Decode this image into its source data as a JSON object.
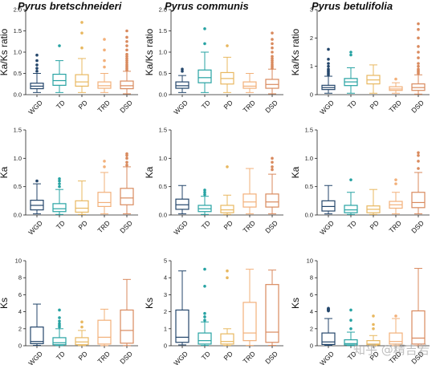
{
  "species_titles": [
    "Pyrus bretschneideri",
    "Pyrus communis",
    "Pyrus betulifolia"
  ],
  "watermark": "知乎 @精吉若",
  "categories": [
    "WGD",
    "TD",
    "PD",
    "TRD",
    "DSD"
  ],
  "colors": {
    "WGD": "#24466b",
    "TD": "#27a3a3",
    "PD": "#e8b860",
    "TRD": "#f2b07a",
    "DSD": "#d98a5e"
  },
  "chart_data": [
    {
      "type": "box",
      "species": "Pyrus bretschneideri",
      "ylabel": "Ka/Ks ratio",
      "ylim": [
        0,
        2.0
      ],
      "yticks": [
        0.0,
        0.5,
        1.0,
        1.5,
        2.0
      ],
      "tick_labels": [
        "0.0",
        "0.5",
        "1.0",
        "1.5",
        "2.0"
      ],
      "boxes": [
        {
          "category": "WGD",
          "min": 0.05,
          "q1": 0.14,
          "median": 0.2,
          "q3": 0.27,
          "max": 0.5,
          "outliers": [
            0.55,
            0.62,
            0.7,
            0.8,
            0.93
          ]
        },
        {
          "category": "TD",
          "min": 0.05,
          "q1": 0.22,
          "median": 0.33,
          "q3": 0.48,
          "max": 0.8,
          "outliers": [
            1.15
          ]
        },
        {
          "category": "PD",
          "min": 0.05,
          "q1": 0.2,
          "median": 0.3,
          "q3": 0.47,
          "max": 0.85,
          "outliers": [
            1.1,
            1.45,
            1.7
          ]
        },
        {
          "category": "TRD",
          "min": 0.05,
          "q1": 0.15,
          "median": 0.21,
          "q3": 0.3,
          "max": 0.5,
          "outliers": [
            0.65,
            0.8,
            1.05,
            1.3
          ]
        },
        {
          "category": "DSD",
          "min": 0.02,
          "q1": 0.14,
          "median": 0.21,
          "q3": 0.32,
          "max": 0.55,
          "outliers": [
            0.58,
            0.62,
            0.66,
            0.7,
            0.75,
            0.8,
            0.85,
            0.9,
            0.95,
            1.05,
            1.15,
            1.25,
            1.35,
            1.5
          ]
        }
      ]
    },
    {
      "type": "box",
      "species": "Pyrus communis",
      "ylabel": "Ka/Ks ratio",
      "ylim": [
        0,
        2.0
      ],
      "yticks": [
        0.0,
        0.5,
        1.0,
        1.5,
        2.0
      ],
      "tick_labels": [
        "0.0",
        "0.5",
        "1.0",
        "1.5",
        "2.0"
      ],
      "boxes": [
        {
          "category": "WGD",
          "min": 0.05,
          "q1": 0.15,
          "median": 0.21,
          "q3": 0.3,
          "max": 0.45,
          "outliers": [
            0.55,
            0.6
          ]
        },
        {
          "category": "TD",
          "min": 0.05,
          "q1": 0.28,
          "median": 0.4,
          "q3": 0.58,
          "max": 1.0,
          "outliers": [
            1.2,
            1.55
          ]
        },
        {
          "category": "PD",
          "min": 0.05,
          "q1": 0.25,
          "median": 0.38,
          "q3": 0.52,
          "max": 0.88,
          "outliers": [
            1.15
          ]
        },
        {
          "category": "TRD",
          "min": 0.05,
          "q1": 0.15,
          "median": 0.2,
          "q3": 0.3,
          "max": 0.5,
          "outliers": []
        },
        {
          "category": "DSD",
          "min": 0.02,
          "q1": 0.15,
          "median": 0.24,
          "q3": 0.36,
          "max": 0.6,
          "outliers": [
            0.62,
            0.66,
            0.7,
            0.75,
            0.8,
            0.85,
            0.9,
            1.0,
            1.1,
            1.2,
            1.3,
            1.45
          ]
        }
      ]
    },
    {
      "type": "box",
      "species": "Pyrus betulifolia",
      "ylabel": "Ka/Ks ratio",
      "ylim": [
        0,
        3
      ],
      "yticks": [
        0,
        1,
        2,
        3
      ],
      "tick_labels": [
        "0",
        "1",
        "2",
        "3"
      ],
      "boxes": [
        {
          "category": "WGD",
          "min": 0.05,
          "q1": 0.18,
          "median": 0.25,
          "q3": 0.33,
          "max": 0.65,
          "outliers": [
            0.7,
            0.75,
            0.8,
            0.85,
            0.9,
            1.0,
            1.1,
            1.25,
            1.6
          ]
        },
        {
          "category": "TD",
          "min": 0.05,
          "q1": 0.32,
          "median": 0.45,
          "q3": 0.57,
          "max": 0.95,
          "outliers": [
            1.4,
            1.5
          ]
        },
        {
          "category": "PD",
          "min": 0.05,
          "q1": 0.38,
          "median": 0.52,
          "q3": 0.68,
          "max": 1.05,
          "outliers": []
        },
        {
          "category": "TRD",
          "min": 0.05,
          "q1": 0.15,
          "median": 0.2,
          "q3": 0.28,
          "max": 0.42,
          "outliers": [
            0.55
          ]
        },
        {
          "category": "DSD",
          "min": 0.02,
          "q1": 0.15,
          "median": 0.25,
          "q3": 0.38,
          "max": 0.7,
          "outliers": [
            0.75,
            0.8,
            0.85,
            0.9,
            1.0,
            1.1,
            1.3,
            1.5,
            1.7,
            2.0,
            2.3,
            2.5
          ]
        }
      ]
    },
    {
      "type": "box",
      "species": "Pyrus bretschneideri",
      "ylabel": "Ka",
      "ylim": [
        0,
        1.5
      ],
      "yticks": [
        0.0,
        0.5,
        1.0,
        1.5
      ],
      "tick_labels": [
        "0.0",
        "0.5",
        "1.0",
        "1.5"
      ],
      "boxes": [
        {
          "category": "WGD",
          "min": 0.02,
          "q1": 0.09,
          "median": 0.17,
          "q3": 0.26,
          "max": 0.55,
          "outliers": [
            0.6
          ]
        },
        {
          "category": "TD",
          "min": 0.01,
          "q1": 0.06,
          "median": 0.11,
          "q3": 0.2,
          "max": 0.45,
          "outliers": [
            0.5,
            0.55,
            0.6,
            0.64
          ]
        },
        {
          "category": "PD",
          "min": 0.01,
          "q1": 0.05,
          "median": 0.12,
          "q3": 0.25,
          "max": 0.6,
          "outliers": []
        },
        {
          "category": "TRD",
          "min": 0.02,
          "q1": 0.15,
          "median": 0.22,
          "q3": 0.4,
          "max": 0.75,
          "outliers": [
            0.85,
            0.95
          ]
        },
        {
          "category": "DSD",
          "min": 0.02,
          "q1": 0.18,
          "median": 0.3,
          "q3": 0.47,
          "max": 0.85,
          "outliers": [
            0.88,
            0.93,
            1.0,
            1.05,
            1.08
          ]
        }
      ]
    },
    {
      "type": "box",
      "species": "Pyrus communis",
      "ylabel": "Ka",
      "ylim": [
        0,
        1.5
      ],
      "yticks": [
        0.0,
        0.5,
        1.0,
        1.5
      ],
      "tick_labels": [
        "0.0",
        "0.5",
        "1.0",
        "1.5"
      ],
      "boxes": [
        {
          "category": "WGD",
          "min": 0.02,
          "q1": 0.1,
          "median": 0.18,
          "q3": 0.28,
          "max": 0.52,
          "outliers": []
        },
        {
          "category": "TD",
          "min": 0.01,
          "q1": 0.06,
          "median": 0.11,
          "q3": 0.17,
          "max": 0.33,
          "outliers": [
            0.36,
            0.4,
            0.44
          ]
        },
        {
          "category": "PD",
          "min": 0.01,
          "q1": 0.04,
          "median": 0.09,
          "q3": 0.17,
          "max": 0.35,
          "outliers": [
            0.85
          ]
        },
        {
          "category": "TRD",
          "min": 0.02,
          "q1": 0.14,
          "median": 0.23,
          "q3": 0.37,
          "max": 0.82,
          "outliers": []
        },
        {
          "category": "DSD",
          "min": 0.02,
          "q1": 0.14,
          "median": 0.23,
          "q3": 0.37,
          "max": 0.72,
          "outliers": [
            0.8,
            0.85,
            0.93,
            1.0
          ]
        }
      ]
    },
    {
      "type": "box",
      "species": "Pyrus betulifolia",
      "ylabel": "Ka",
      "ylim": [
        0,
        1.5
      ],
      "yticks": [
        0.0,
        0.5,
        1.0,
        1.5
      ],
      "tick_labels": [
        "0.0",
        "0.5",
        "1.0",
        "1.5"
      ],
      "boxes": [
        {
          "category": "WGD",
          "min": 0.02,
          "q1": 0.07,
          "median": 0.15,
          "q3": 0.25,
          "max": 0.52,
          "outliers": []
        },
        {
          "category": "TD",
          "min": 0.01,
          "q1": 0.04,
          "median": 0.09,
          "q3": 0.17,
          "max": 0.4,
          "outliers": [
            0.62
          ]
        },
        {
          "category": "PD",
          "min": 0.01,
          "q1": 0.04,
          "median": 0.1,
          "q3": 0.16,
          "max": 0.45,
          "outliers": []
        },
        {
          "category": "TRD",
          "min": 0.02,
          "q1": 0.12,
          "median": 0.18,
          "q3": 0.24,
          "max": 0.4,
          "outliers": [
            0.55,
            0.62
          ]
        },
        {
          "category": "DSD",
          "min": 0.02,
          "q1": 0.13,
          "median": 0.22,
          "q3": 0.4,
          "max": 0.75,
          "outliers": [
            0.82,
            0.95,
            1.05,
            1.1
          ]
        }
      ]
    },
    {
      "type": "box",
      "species": "Pyrus bretschneideri",
      "ylabel": "Ks",
      "ylim": [
        0,
        10
      ],
      "yticks": [
        0,
        2,
        4,
        6,
        8,
        10
      ],
      "tick_labels": [
        "0",
        "2",
        "4",
        "6",
        "8",
        "10"
      ],
      "boxes": [
        {
          "category": "WGD",
          "min": 0.05,
          "q1": 0.25,
          "median": 0.5,
          "q3": 2.2,
          "max": 4.9,
          "outliers": []
        },
        {
          "category": "TD",
          "min": 0.02,
          "q1": 0.12,
          "median": 0.35,
          "q3": 0.95,
          "max": 2.0,
          "outliers": [
            2.2,
            2.4,
            2.6,
            2.9,
            3.3,
            4.2
          ]
        },
        {
          "category": "PD",
          "min": 0.02,
          "q1": 0.12,
          "median": 0.45,
          "q3": 0.95,
          "max": 1.8,
          "outliers": [
            2.2,
            2.8
          ]
        },
        {
          "category": "TRD",
          "min": 0.02,
          "q1": 0.2,
          "median": 1.0,
          "q3": 3.0,
          "max": 4.3,
          "outliers": []
        },
        {
          "category": "DSD",
          "min": 0.02,
          "q1": 0.3,
          "median": 1.8,
          "q3": 4.2,
          "max": 7.8,
          "outliers": []
        }
      ]
    },
    {
      "type": "box",
      "species": "Pyrus communis",
      "ylabel": "Ks",
      "ylim": [
        0,
        5
      ],
      "yticks": [
        0,
        1,
        2,
        3,
        4,
        5
      ],
      "tick_labels": [
        "0",
        "1",
        "2",
        "3",
        "4",
        "5"
      ],
      "boxes": [
        {
          "category": "WGD",
          "min": 0.05,
          "q1": 0.2,
          "median": 0.5,
          "q3": 2.1,
          "max": 4.4,
          "outliers": []
        },
        {
          "category": "TD",
          "min": 0.02,
          "q1": 0.1,
          "median": 0.3,
          "q3": 0.75,
          "max": 1.4,
          "outliers": [
            1.5,
            1.7,
            1.9,
            3.5,
            4.5
          ]
        },
        {
          "category": "PD",
          "min": 0.02,
          "q1": 0.1,
          "median": 0.25,
          "q3": 0.7,
          "max": 1.0,
          "outliers": [
            4.0,
            4.4
          ]
        },
        {
          "category": "TRD",
          "min": 0.02,
          "q1": 0.3,
          "median": 0.75,
          "q3": 2.55,
          "max": 4.5,
          "outliers": []
        },
        {
          "category": "DSD",
          "min": 0.02,
          "q1": 0.2,
          "median": 0.8,
          "q3": 3.6,
          "max": 4.45,
          "outliers": []
        }
      ]
    },
    {
      "type": "box",
      "species": "Pyrus betulifolia",
      "ylabel": "Ks",
      "ylim": [
        0,
        10
      ],
      "yticks": [
        0,
        2,
        4,
        6,
        8,
        10
      ],
      "tick_labels": [
        "0",
        "2",
        "4",
        "6",
        "8",
        "10"
      ],
      "boxes": [
        {
          "category": "WGD",
          "min": 0.05,
          "q1": 0.15,
          "median": 0.45,
          "q3": 1.5,
          "max": 3.2,
          "outliers": [
            4.1,
            4.15,
            4.2,
            4.25,
            4.3,
            4.35,
            4.4
          ]
        },
        {
          "category": "TD",
          "min": 0.02,
          "q1": 0.1,
          "median": 0.25,
          "q3": 0.7,
          "max": 1.6,
          "outliers": [
            2.0,
            3.0,
            4.2
          ]
        },
        {
          "category": "PD",
          "min": 0.02,
          "q1": 0.1,
          "median": 0.2,
          "q3": 0.6,
          "max": 1.2,
          "outliers": [
            2.0,
            2.5,
            3.5
          ]
        },
        {
          "category": "TRD",
          "min": 0.02,
          "q1": 0.2,
          "median": 0.5,
          "q3": 1.5,
          "max": 3.2,
          "outliers": [
            3.5
          ]
        },
        {
          "category": "DSD",
          "min": 0.02,
          "q1": 0.2,
          "median": 0.9,
          "q3": 4.1,
          "max": 9.1,
          "outliers": []
        }
      ]
    }
  ]
}
